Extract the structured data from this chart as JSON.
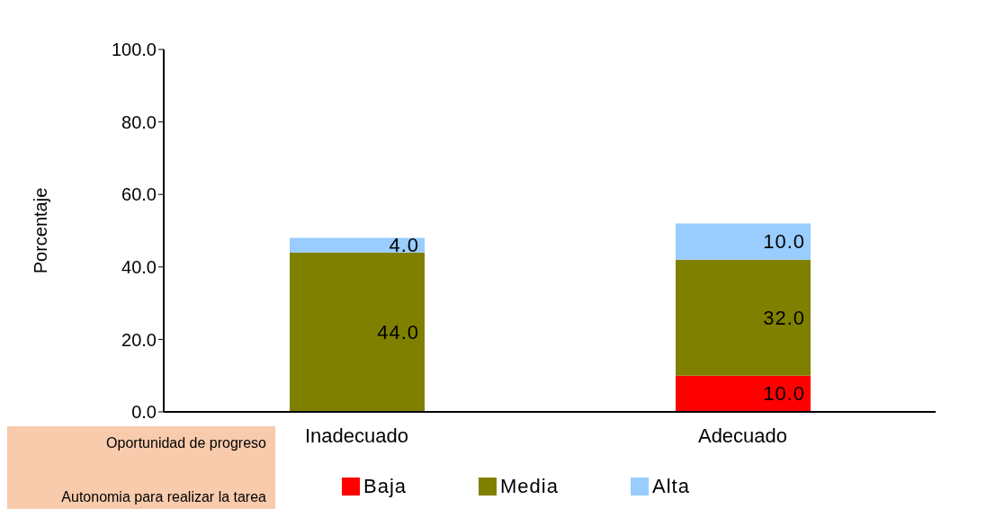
{
  "chart_data": {
    "type": "bar",
    "stacked": true,
    "categories": [
      "Inadecuado",
      "Adecuado"
    ],
    "series": [
      {
        "name": "Baja",
        "color": "#ff0000",
        "values": [
          0,
          10
        ],
        "value_labels": [
          null,
          "10.0"
        ]
      },
      {
        "name": "Media",
        "color": "#808000",
        "values": [
          44,
          32
        ],
        "value_labels": [
          "44.0",
          "32.0"
        ]
      },
      {
        "name": "Alta",
        "color": "#99ccff",
        "values": [
          4,
          10
        ],
        "value_labels": [
          "4.0",
          "10.0"
        ]
      }
    ],
    "ylabel": "Porcentaje",
    "ylim": [
      0,
      100
    ],
    "yticks": [
      {
        "value": 0,
        "label": "0.0"
      },
      {
        "value": 20,
        "label": "20.0"
      },
      {
        "value": 40,
        "label": "40.0"
      },
      {
        "value": 60,
        "label": "60.0"
      },
      {
        "value": 80,
        "label": "80.0"
      },
      {
        "value": 100,
        "label": "100.0"
      }
    ],
    "legend": "bottom",
    "annotations": [
      "Oportunidad de progreso",
      "Autonomia para realizar la tarea"
    ]
  }
}
